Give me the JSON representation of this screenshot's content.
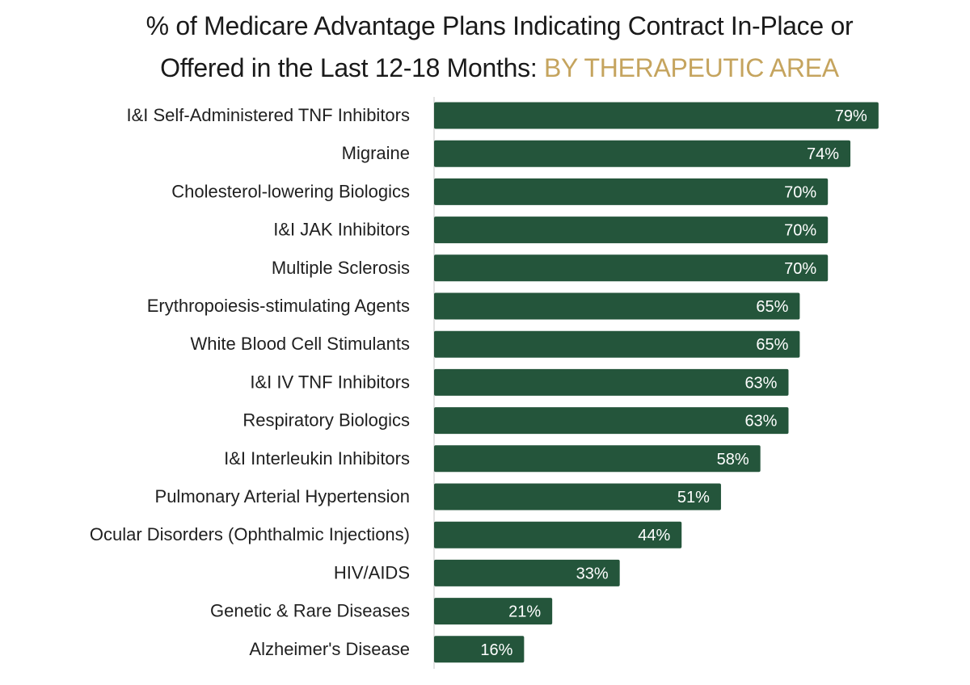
{
  "chart_data": {
    "type": "bar",
    "orientation": "horizontal",
    "title_main": "% of Medicare Advantage Plans Indicating Contract In-Place or",
    "title_line2": "Offered in the Last 12-18 Months:",
    "title_accent": "BY THERAPEUTIC AREA",
    "categories": [
      "I&I Self-Administered TNF Inhibitors",
      "Migraine",
      "Cholesterol-lowering Biologics",
      "I&I JAK Inhibitors",
      "Multiple Sclerosis",
      "Erythropoiesis-stimulating Agents",
      "White Blood Cell Stimulants",
      "I&I IV TNF Inhibitors",
      "Respiratory Biologics",
      "I&I Interleukin Inhibitors",
      "Pulmonary Arterial Hypertension",
      "Ocular Disorders (Ophthalmic Injections)",
      "HIV/AIDS",
      "Genetic & Rare Diseases",
      "Alzheimer's Disease"
    ],
    "values": [
      79,
      74,
      70,
      70,
      70,
      65,
      65,
      63,
      63,
      58,
      51,
      44,
      33,
      21,
      16
    ],
    "value_labels": [
      "79%",
      "74%",
      "70%",
      "70%",
      "70%",
      "65%",
      "65%",
      "63%",
      "63%",
      "58%",
      "51%",
      "44%",
      "33%",
      "21%",
      "16%"
    ],
    "xlim": [
      0,
      100
    ],
    "grid": false,
    "legend": "none",
    "bar_color": "#24553b",
    "accent_color": "#c5a45e"
  }
}
